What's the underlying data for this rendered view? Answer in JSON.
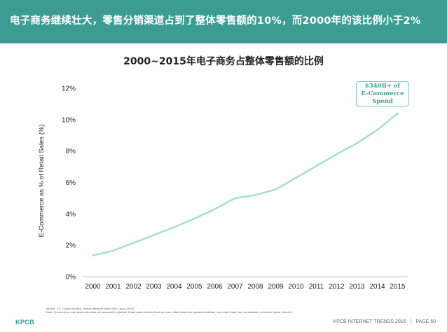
{
  "header": {
    "title": "电子商务继续壮大，零售分销渠道占到了整体零售额的10%，而2000年的该比例小于2%",
    "background": "#3c9c93"
  },
  "chart_data": {
    "type": "line",
    "title": "2000~2015年电子商务占整体零售额的比例",
    "xlabel": "",
    "ylabel": "E-Commerce as % of Retail Sales (%)",
    "x": [
      2000,
      2001,
      2002,
      2003,
      2004,
      2005,
      2006,
      2007,
      2008,
      2009,
      2010,
      2011,
      2012,
      2013,
      2014,
      2015
    ],
    "x_tick_labels": [
      "2000",
      "2001",
      "2002",
      "2003",
      "2004",
      "2005",
      "2006",
      "2007",
      "2008",
      "2009",
      "2010",
      "2011",
      "2012",
      "2013",
      "2014",
      "2015"
    ],
    "series": [
      {
        "color": "#a6dcd5",
        "values": [
          1.35,
          1.65,
          2.15,
          2.65,
          3.15,
          3.7,
          4.3,
          5.0,
          5.2,
          5.55,
          6.3,
          7.05,
          7.8,
          8.5,
          9.35,
          10.4
        ]
      }
    ],
    "ylim": [
      0,
      12
    ],
    "y_ticks": [
      0,
      2,
      4,
      6,
      8,
      10,
      12
    ],
    "y_tick_labels": [
      "0%",
      "2%",
      "4%",
      "6%",
      "8%",
      "10%",
      "12%"
    ],
    "grid": false,
    "annotation": {
      "lines": [
        "$340B+ of",
        "E-Commerce",
        "Spend"
      ]
    }
  },
  "source": {
    "line1": "Source: U.S. Census Bureau, Federal Reserve Bank of St. Louis (2016)",
    "line2": "Note: E-commerce and retail sales data are seasonally adjusted. Retail sales exclude food services, retail trade from gasoline stations, and retail trade from automobiles and other motor vehicles."
  },
  "footer": {
    "logo": "KPCB",
    "report": "KPCB INTERNET TRENDS 2016",
    "separator": "|",
    "page": "PAGE 60"
  }
}
